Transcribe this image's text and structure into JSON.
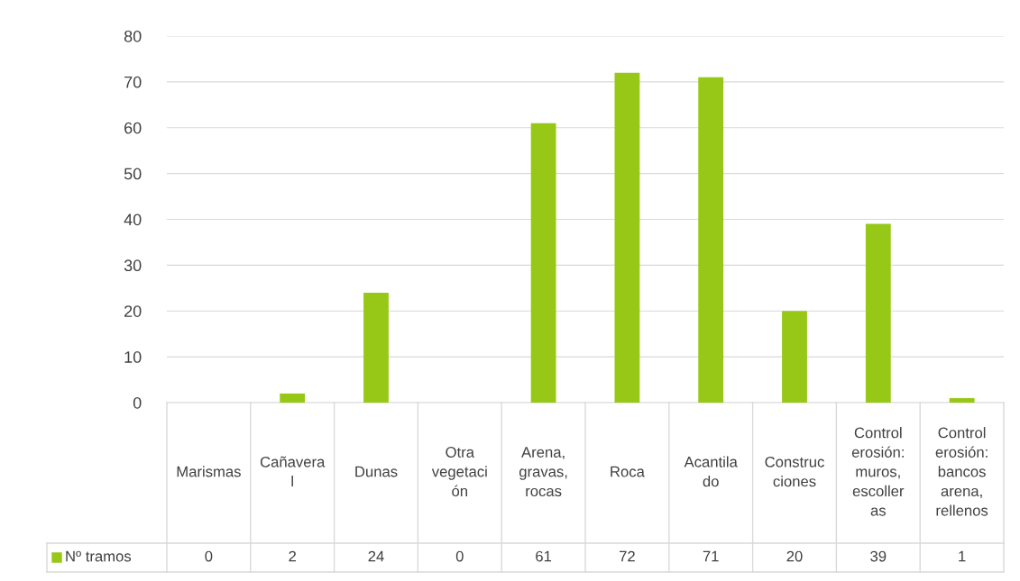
{
  "chart_data": {
    "type": "bar",
    "categories": [
      "Marismas",
      "Cañaveral",
      "Dunas",
      "Otra vegetación",
      "Arena, gravas, rocas",
      "Roca",
      "Acantilado",
      "Construcciones",
      "Control erosión: muros, escolleras",
      "Control erosión: bancos arena, rellenos"
    ],
    "series": [
      {
        "name": "Nº tramos",
        "color": "#97c818",
        "values": [
          0,
          2,
          24,
          0,
          61,
          72,
          71,
          20,
          39,
          1
        ]
      }
    ],
    "ylim": [
      0,
      80
    ],
    "yticks": [
      0,
      10,
      20,
      30,
      40,
      50,
      60,
      70,
      80
    ],
    "grid": "y",
    "data_labels": true
  }
}
